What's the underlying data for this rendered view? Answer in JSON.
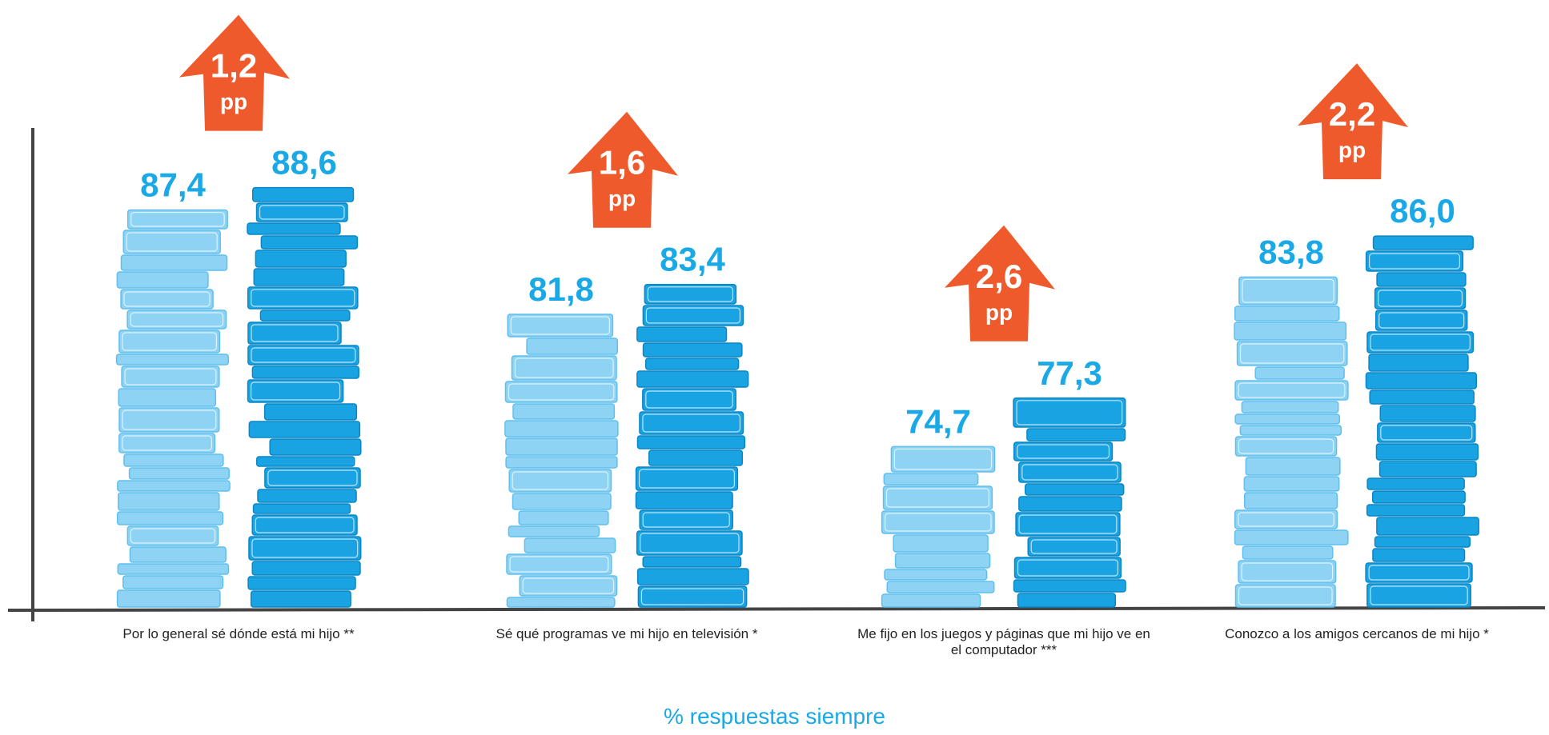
{
  "chart_data": {
    "type": "bar",
    "categories": [
      "Por lo general sé dónde está mi hijo **",
      "Sé qué programas ve mi hijo en televisión *",
      "Me fijo en los juegos y páginas que mi hijo ve en el computador ***",
      "Conozco a los amigos cercanos de mi hijo *"
    ],
    "series": [
      {
        "color": "#8fd3f4",
        "values": [
          87.4,
          81.8,
          74.7,
          83.8
        ],
        "value_labels": [
          "87,4",
          "81,8",
          "74,7",
          "83,8"
        ]
      },
      {
        "color": "#1aa3e3",
        "values": [
          88.6,
          83.4,
          77.3,
          86.0
        ],
        "value_labels": [
          "88,6",
          "83,4",
          "77,3",
          "86,0"
        ]
      }
    ],
    "differences": [
      {
        "value": 1.2,
        "label": "1,2"
      },
      {
        "value": 1.6,
        "label": "1,6"
      },
      {
        "value": 2.6,
        "label": "2,6"
      },
      {
        "value": 2.2,
        "label": "2,2"
      }
    ],
    "difference_unit": "pp",
    "difference_color": "#ee5a2b",
    "x_label": "% respuestas siempre",
    "ylim": [
      66,
      90
    ]
  }
}
